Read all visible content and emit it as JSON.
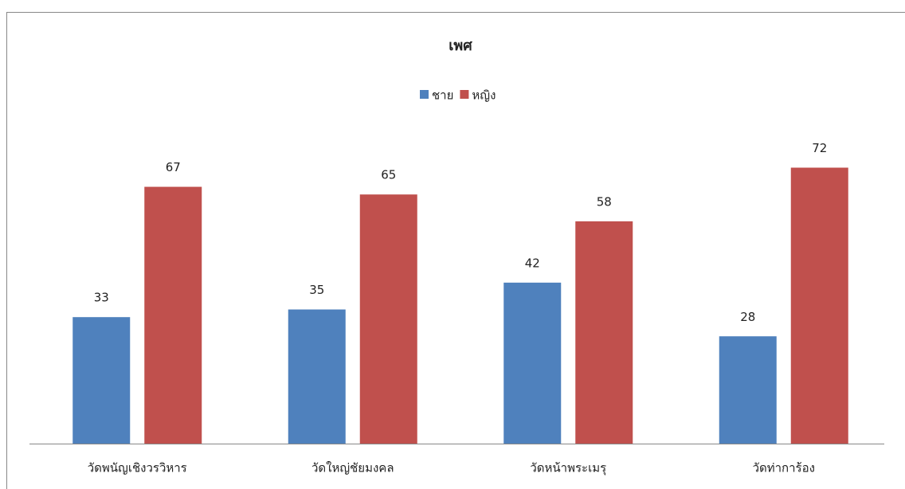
{
  "chart_data": {
    "type": "bar",
    "title": "เพศ",
    "categories": [
      "วัดพนัญเชิงวรวิหาร",
      "วัดใหญ่ชัยมงคล",
      "วัดหน้าพระเมรุ",
      "วัดท่าการ้อง"
    ],
    "series": [
      {
        "name": "ชาย",
        "color": "#4f81bd",
        "values": [
          33,
          35,
          42,
          28
        ]
      },
      {
        "name": "หญิง",
        "color": "#c0504d",
        "values": [
          67,
          65,
          58,
          72
        ]
      }
    ],
    "ylim": [
      0,
      80
    ],
    "legend": "top"
  }
}
